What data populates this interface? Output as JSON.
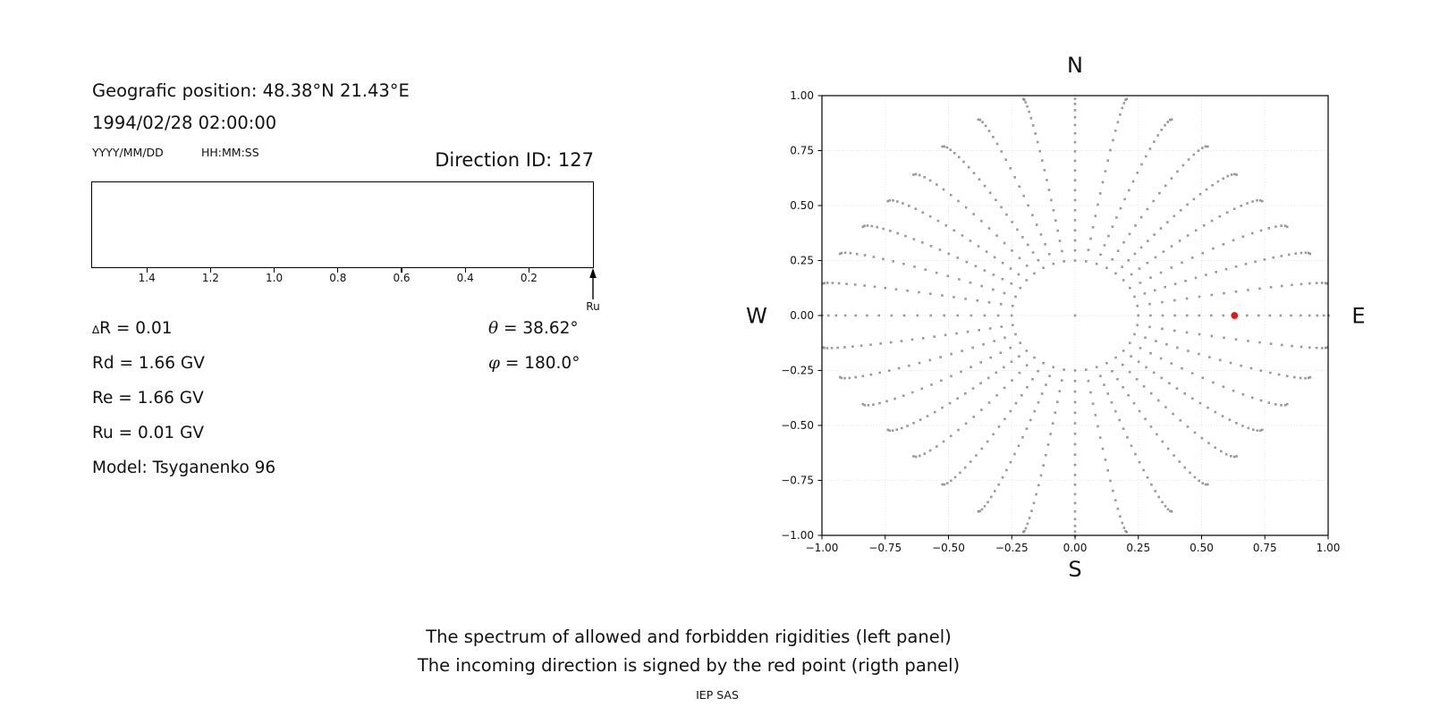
{
  "header": {
    "geographic_position": "Geografic position: 48.38°N 21.43°E",
    "datetime": "1994/02/28 02:00:00",
    "date_format_hint": "YYYY/MM/DD",
    "time_format_hint": "HH:MM:SS",
    "direction_id": "Direction ID: 127"
  },
  "parameters": [
    {
      "sym": "∆",
      "rest": "R = 0.01"
    },
    {
      "sym": "",
      "rest": "Rd = 1.66 GV"
    },
    {
      "sym": "",
      "rest": "Re = 1.66 GV"
    },
    {
      "sym": "",
      "rest": "Ru = 0.01 GV"
    },
    {
      "sym": "",
      "rest": "Model: Tsyganenko 96"
    }
  ],
  "angles": [
    {
      "sym": "θ",
      "rest": " = 38.62°"
    },
    {
      "sym": "φ",
      "rest": " = 180.0°"
    }
  ],
  "footer": {
    "caption_line1": "The spectrum of allowed and forbidden rigidities (left panel)",
    "caption_line2": "The incoming direction is signed by the red point (rigth panel)",
    "credit": "IEP SAS"
  },
  "chart_data": [
    {
      "id": "rigidity-spectrum",
      "type": "scatter",
      "title": "",
      "xlabel": "",
      "ylabel": "",
      "x_ticks": [
        1.4,
        1.2,
        1.0,
        0.8,
        0.6,
        0.4,
        0.2
      ],
      "xlim": [
        1.57,
        -0.01
      ],
      "x_axis_reversed": true,
      "grid": false,
      "points": [],
      "arrow_marker": {
        "x": 0.01,
        "label": "Ru"
      }
    },
    {
      "id": "incoming-direction",
      "type": "scatter",
      "title": "",
      "xlim": [
        -1.0,
        1.0
      ],
      "ylim": [
        -1.0,
        1.0
      ],
      "x_ticks": [
        -1.0,
        -0.75,
        -0.5,
        -0.25,
        0.0,
        0.25,
        0.5,
        0.75,
        1.0
      ],
      "y_ticks": [
        -1.0,
        -0.75,
        -0.5,
        -0.25,
        0.0,
        0.25,
        0.5,
        0.75,
        1.0
      ],
      "grid": true,
      "grid_color": "#e3e3e3",
      "direction_labels": {
        "top": "N",
        "bottom": "S",
        "left": "W",
        "right": "E"
      },
      "dot_color": "#8c8c8c",
      "center_dot": {
        "x": 0.0,
        "y": 0.0
      },
      "inner_ring_radius": 0.25,
      "spoke_model": "r(t)=r0+(r1-r0)*1.25*(t-0.2*t^5); angle(t)=a+curl*t^2; t=i/(n-1)",
      "spokes": [
        {
          "a": 0,
          "r0": 0.25,
          "r1": 1.02,
          "n": 21,
          "curl": 0.0
        },
        {
          "a": 10,
          "r0": 0.25,
          "r1": 1.006,
          "n": 20,
          "curl": -1.7
        },
        {
          "a": 20,
          "r0": 0.25,
          "r1": 0.97,
          "n": 22,
          "curl": -3.2
        },
        {
          "a": 30,
          "r0": 0.25,
          "r1": 0.93,
          "n": 19,
          "curl": -4.3
        },
        {
          "a": 40,
          "r0": 0.25,
          "r1": 0.904,
          "n": 21,
          "curl": -4.9
        },
        {
          "a": 50,
          "r0": 0.25,
          "r1": 0.904,
          "n": 22,
          "curl": -4.9
        },
        {
          "a": 60,
          "r0": 0.25,
          "r1": 0.93,
          "n": 20,
          "curl": -4.3
        },
        {
          "a": 70,
          "r0": 0.25,
          "r1": 0.97,
          "n": 21,
          "curl": -3.2
        },
        {
          "a": 80,
          "r0": 0.25,
          "r1": 1.006,
          "n": 19,
          "curl": -1.7
        },
        {
          "a": 90,
          "r0": 0.25,
          "r1": 1.02,
          "n": 22,
          "curl": 0.0
        },
        {
          "a": 100,
          "r0": 0.25,
          "r1": 1.006,
          "n": 21,
          "curl": 1.7
        },
        {
          "a": 110,
          "r0": 0.25,
          "r1": 0.97,
          "n": 20,
          "curl": 3.2
        },
        {
          "a": 120,
          "r0": 0.25,
          "r1": 0.93,
          "n": 22,
          "curl": 4.3
        },
        {
          "a": 130,
          "r0": 0.25,
          "r1": 0.904,
          "n": 19,
          "curl": 4.9
        },
        {
          "a": 140,
          "r0": 0.25,
          "r1": 0.904,
          "n": 21,
          "curl": 4.9
        },
        {
          "a": 150,
          "r0": 0.25,
          "r1": 0.93,
          "n": 22,
          "curl": 4.3
        },
        {
          "a": 160,
          "r0": 0.25,
          "r1": 0.97,
          "n": 20,
          "curl": 3.2
        },
        {
          "a": 170,
          "r0": 0.25,
          "r1": 1.006,
          "n": 21,
          "curl": 1.7
        },
        {
          "a": 180,
          "r0": 0.25,
          "r1": 1.02,
          "n": 19,
          "curl": 0.0
        },
        {
          "a": 190,
          "r0": 0.25,
          "r1": 1.006,
          "n": 22,
          "curl": -1.7
        },
        {
          "a": 200,
          "r0": 0.25,
          "r1": 0.97,
          "n": 21,
          "curl": -3.2
        },
        {
          "a": 210,
          "r0": 0.25,
          "r1": 0.93,
          "n": 20,
          "curl": -4.3
        },
        {
          "a": 220,
          "r0": 0.25,
          "r1": 0.904,
          "n": 22,
          "curl": -4.9
        },
        {
          "a": 230,
          "r0": 0.25,
          "r1": 0.904,
          "n": 19,
          "curl": -4.9
        },
        {
          "a": 240,
          "r0": 0.25,
          "r1": 0.93,
          "n": 21,
          "curl": -4.3
        },
        {
          "a": 250,
          "r0": 0.25,
          "r1": 0.97,
          "n": 22,
          "curl": -3.2
        },
        {
          "a": 260,
          "r0": 0.25,
          "r1": 1.006,
          "n": 20,
          "curl": -1.7
        },
        {
          "a": 270,
          "r0": 0.25,
          "r1": 1.02,
          "n": 21,
          "curl": 0.0
        },
        {
          "a": 280,
          "r0": 0.25,
          "r1": 1.006,
          "n": 19,
          "curl": 1.7
        },
        {
          "a": 290,
          "r0": 0.25,
          "r1": 0.97,
          "n": 22,
          "curl": 3.2
        },
        {
          "a": 300,
          "r0": 0.25,
          "r1": 0.93,
          "n": 21,
          "curl": 4.3
        },
        {
          "a": 310,
          "r0": 0.25,
          "r1": 0.904,
          "n": 20,
          "curl": 4.9
        },
        {
          "a": 320,
          "r0": 0.25,
          "r1": 0.904,
          "n": 22,
          "curl": 4.9
        },
        {
          "a": 330,
          "r0": 0.25,
          "r1": 0.93,
          "n": 19,
          "curl": 4.3
        },
        {
          "a": 340,
          "r0": 0.25,
          "r1": 0.97,
          "n": 21,
          "curl": 3.2
        },
        {
          "a": 350,
          "r0": 0.25,
          "r1": 1.006,
          "n": 20,
          "curl": 1.7
        }
      ],
      "red_point": {
        "x": 0.63,
        "y": 0.0,
        "color": "#f01010"
      }
    }
  ]
}
